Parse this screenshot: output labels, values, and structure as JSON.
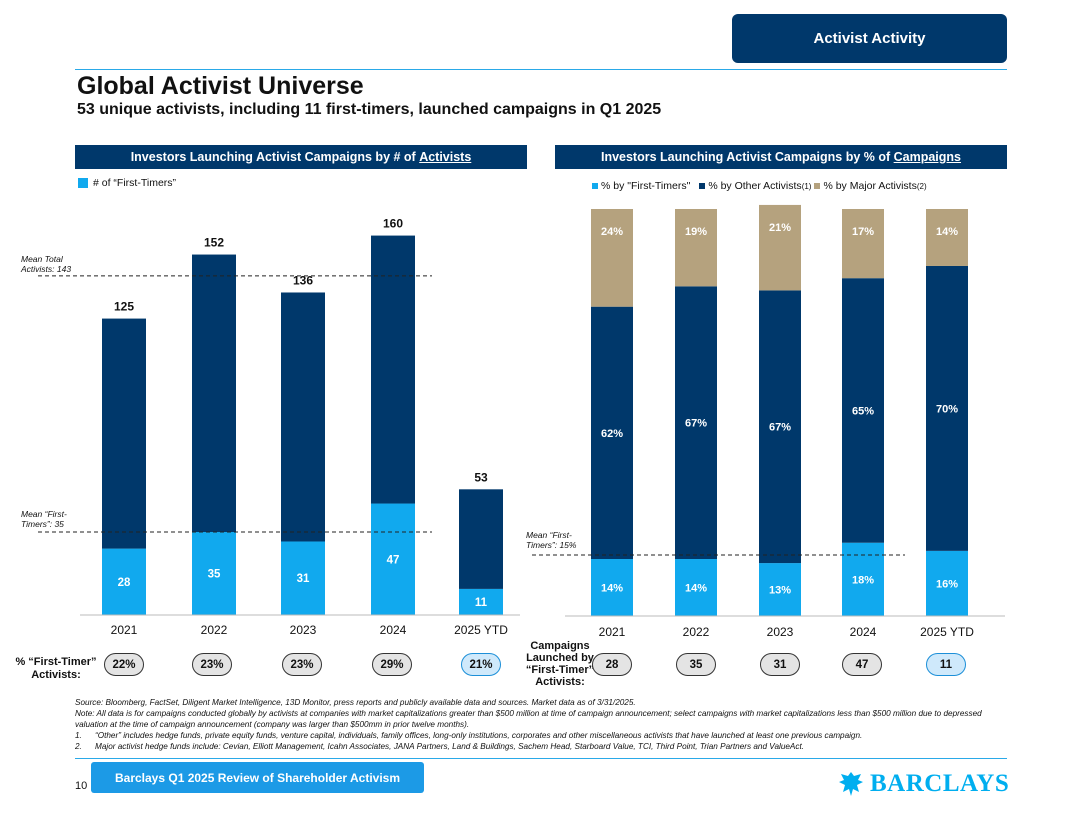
{
  "header": {
    "tag": "Activist Activity",
    "title": "Global Activist Universe",
    "subtitle": "53 unique activists, including 11 first-timers, launched campaigns in Q1 2025"
  },
  "left_panel": {
    "heading_prefix": "Investors Launching Activist Campaigns by # of ",
    "heading_link": "Activists",
    "legend_label": "# of “First-Timers”",
    "mean_total_label": [
      "Mean Total",
      "Activists: 143"
    ],
    "mean_first_label": [
      "Mean “First-",
      "Timers”: 35"
    ],
    "pill_row_label": [
      "% “First-Timer”",
      "Activists:"
    ],
    "pills": [
      "22%",
      "23%",
      "23%",
      "29%",
      "21%"
    ]
  },
  "right_panel": {
    "heading_prefix": "Investors Launching Activist Campaigns by % of ",
    "heading_link": "Campaigns",
    "legend": [
      {
        "label": "% by \"First-Timers\"",
        "sup": ""
      },
      {
        "label": "% by Other Activists",
        "sup": "(1)"
      },
      {
        "label": "% by Major Activists",
        "sup": "(2)"
      }
    ],
    "mean_first_label": [
      "Mean “First-",
      "Timers”:  15%"
    ],
    "pill_row_label": [
      "Campaigns",
      "Launched by",
      "“First-Timer”",
      "Activists:"
    ],
    "pills": [
      "28",
      "35",
      "31",
      "47",
      "11"
    ]
  },
  "chart_data": [
    {
      "type": "bar",
      "title": "Investors Launching Activist Campaigns by # of Activists",
      "categories": [
        "2021",
        "2022",
        "2023",
        "2024",
        "2025 YTD"
      ],
      "series": [
        {
          "name": "# of “First-Timers”",
          "values": [
            28,
            35,
            31,
            47,
            11
          ]
        },
        {
          "name": "Other activists",
          "values": [
            97,
            117,
            105,
            113,
            42
          ]
        }
      ],
      "totals": [
        125,
        152,
        136,
        160,
        53
      ],
      "reference_lines": [
        {
          "name": "Mean Total Activists",
          "value": 143
        },
        {
          "name": "Mean First-Timers",
          "value": 35
        }
      ],
      "ylim": [
        0,
        175
      ],
      "colors": {
        "first_timers": "#11a9ee",
        "other": "#00386b"
      }
    },
    {
      "type": "bar",
      "title": "Investors Launching Activist Campaigns by % of Campaigns",
      "categories": [
        "2021",
        "2022",
        "2023",
        "2024",
        "2025 YTD"
      ],
      "series": [
        {
          "name": "% by \"First-Timers\"",
          "values": [
            14,
            14,
            13,
            18,
            16
          ],
          "labels": [
            "14%",
            "14%",
            "13%",
            "18%",
            "16%"
          ]
        },
        {
          "name": "% by Other Activists",
          "values": [
            62,
            67,
            67,
            65,
            70
          ],
          "labels": [
            "62%",
            "67%",
            "67%",
            "65%",
            "70%"
          ]
        },
        {
          "name": "% by Major Activists",
          "values": [
            24,
            19,
            21,
            17,
            14
          ],
          "labels": [
            "24%",
            "19%",
            "21%",
            "17%",
            "14%"
          ]
        }
      ],
      "reference_lines": [
        {
          "name": "Mean First-Timers",
          "value": 15
        }
      ],
      "ylim": [
        0,
        100
      ],
      "colors": {
        "first_timers": "#11a9ee",
        "other": "#00386b",
        "major": "#b5a27e"
      }
    }
  ],
  "notes": {
    "source": "Source: Bloomberg, FactSet, Diligent Market Intelligence, 13D Monitor, press reports and publicly available data and sources. Market data as of 3/31/2025.",
    "note": "Note: All data is for campaigns conducted globally by activists at companies with market capitalizations greater than $500 million at time of campaign announcement; select campaigns with market capitalizations less than $500 million due to depressed valuation at the time of campaign announcement (company was larger than $500mm in prior twelve months).",
    "footnotes": [
      {
        "num": "1.",
        "text": "“Other” includes hedge funds, private equity funds, venture capital, individuals, family offices, long-only institutions, corporates and other miscellaneous activists that have launched at least one previous campaign."
      },
      {
        "num": "2.",
        "text": "Major activist hedge funds include: Cevian, Elliott Management, Icahn Associates, JANA Partners, Land & Buildings, Sachem Head, Starboard Value, TCI, Third Point, Trian Partners and ValueAct."
      }
    ]
  },
  "footer": {
    "page_number": "10",
    "tag": "Barclays Q1 2025 Review of Shareholder Activism",
    "logo_text": "BARCLAYS"
  }
}
